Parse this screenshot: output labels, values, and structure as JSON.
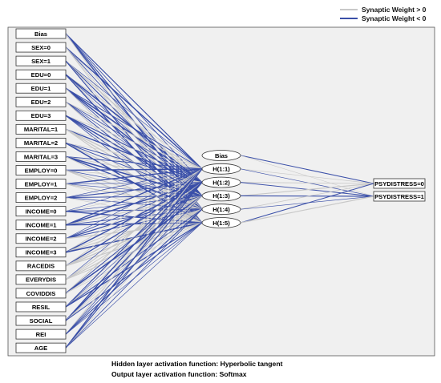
{
  "legend": {
    "positive": {
      "label": "Synaptic Weight > 0",
      "color": "#c8c8c8"
    },
    "negative": {
      "label": "Synaptic Weight < 0",
      "color": "#3a4fa8"
    }
  },
  "input_layer": [
    "Bias",
    "SEX=0",
    "SEX=1",
    "EDU=0",
    "EDU=1",
    "EDU=2",
    "EDU=3",
    "MARITAL=1",
    "MARITAL=2",
    "MARITAL=3",
    "EMPLOY=0",
    "EMPLOY=1",
    "EMPLOY=2",
    "INCOME=0",
    "INCOME=1",
    "INCOME=2",
    "INCOME=3",
    "RACEDIS",
    "EVERYDIS",
    "COVIDDIS",
    "RESIL",
    "SOCIAL",
    "REI",
    "AGE"
  ],
  "hidden_layer": [
    "Bias",
    "H(1:1)",
    "H(1:2)",
    "H(1:3)",
    "H(1:4)",
    "H(1:5)"
  ],
  "output_layer": [
    "PSYDISTRESS=0",
    "PSYDISTRESS=1"
  ],
  "footnotes": {
    "hidden_activation": "Hidden layer activation function: Hyperbolic tangent",
    "output_activation": "Output layer activation function: Softmax"
  },
  "colors": {
    "panel_bg": "#f0f0f0",
    "panel_border": "#555555",
    "node_fill": "#ffffff",
    "node_border": "#333333"
  }
}
